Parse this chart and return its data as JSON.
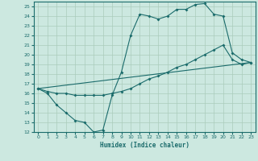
{
  "xlabel": "Humidex (Indice chaleur)",
  "ylabel": "",
  "xlim": [
    -0.5,
    23.5
  ],
  "ylim": [
    12,
    25.5
  ],
  "yticks": [
    12,
    13,
    14,
    15,
    16,
    17,
    18,
    19,
    20,
    21,
    22,
    23,
    24,
    25
  ],
  "xticks": [
    0,
    1,
    2,
    3,
    4,
    5,
    6,
    7,
    8,
    9,
    10,
    11,
    12,
    13,
    14,
    15,
    16,
    17,
    18,
    19,
    20,
    21,
    22,
    23
  ],
  "bg_color": "#cce8e0",
  "grid_color": "#aaccbb",
  "line_color": "#1a6b6b",
  "line1_x": [
    0,
    1,
    2,
    3,
    4,
    5,
    6,
    7,
    8,
    9,
    10,
    11,
    12,
    13,
    14,
    15,
    16,
    17,
    18,
    19,
    20,
    21,
    22,
    23
  ],
  "line1_y": [
    16.5,
    16.0,
    14.8,
    14.0,
    13.2,
    13.0,
    12.0,
    12.2,
    15.8,
    18.2,
    22.0,
    24.2,
    24.0,
    23.7,
    24.0,
    24.7,
    24.7,
    25.2,
    25.3,
    24.2,
    24.0,
    20.2,
    19.5,
    19.2
  ],
  "line2_x": [
    0,
    1,
    2,
    3,
    4,
    5,
    6,
    7,
    8,
    9,
    10,
    11,
    12,
    13,
    14,
    15,
    16,
    17,
    18,
    19,
    20,
    21,
    22,
    23
  ],
  "line2_y": [
    16.5,
    16.2,
    16.0,
    16.0,
    15.8,
    15.8,
    15.8,
    15.8,
    16.0,
    16.2,
    16.5,
    17.0,
    17.5,
    17.8,
    18.2,
    18.7,
    19.0,
    19.5,
    20.0,
    20.5,
    21.0,
    19.5,
    19.0,
    19.2
  ],
  "line3_x": [
    0,
    23
  ],
  "line3_y": [
    16.5,
    19.2
  ]
}
